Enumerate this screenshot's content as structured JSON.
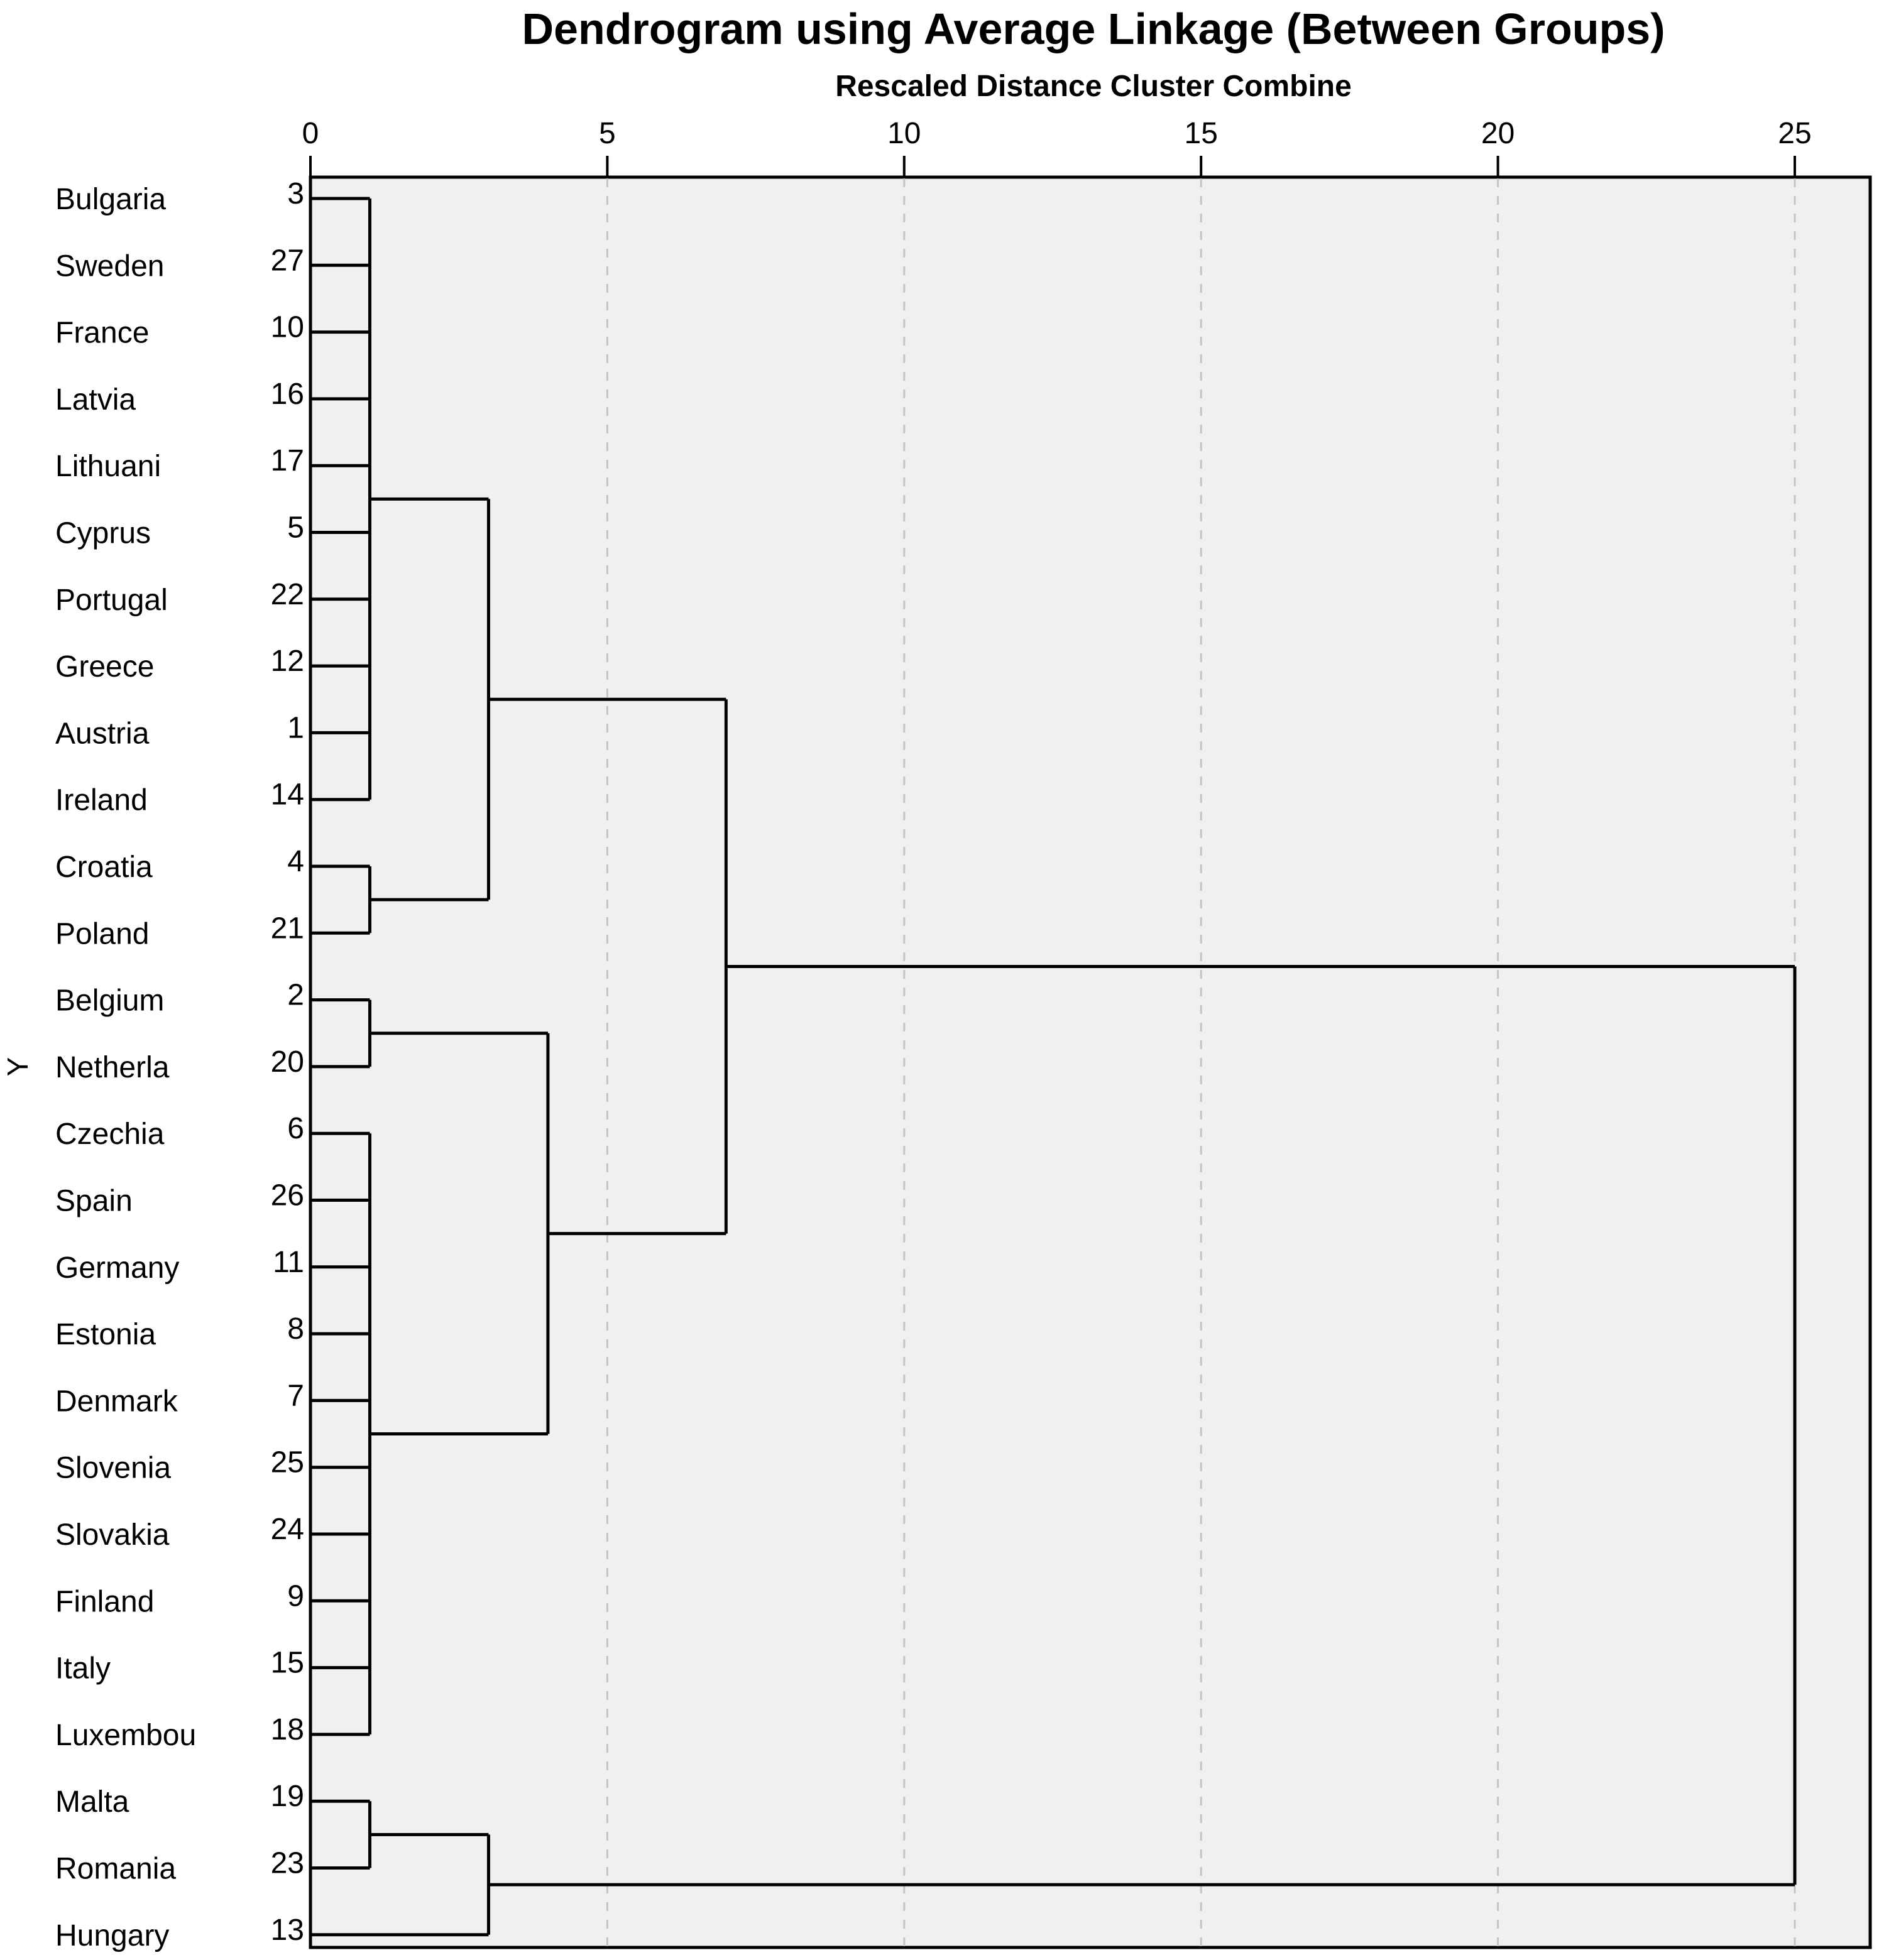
{
  "chart_data": {
    "type": "dendrogram",
    "title": "Dendrogram using Average Linkage (Between Groups)",
    "xlabel": "Rescaled Distance Cluster Combine",
    "ylabel": "Y",
    "xlim": [
      0,
      26.3
    ],
    "xticks": [
      0,
      5,
      10,
      15,
      20,
      25
    ],
    "grid": "vertical dashed lines at 5, 10, 15, 20, 25",
    "leaves": [
      {
        "label": "Bulgaria",
        "case": "3"
      },
      {
        "label": "Sweden",
        "case": "27"
      },
      {
        "label": "France",
        "case": "10"
      },
      {
        "label": "Latvia",
        "case": "16"
      },
      {
        "label": "Lithuani",
        "case": "17"
      },
      {
        "label": "Cyprus",
        "case": "5"
      },
      {
        "label": "Portugal",
        "case": "22"
      },
      {
        "label": "Greece",
        "case": "12"
      },
      {
        "label": "Austria",
        "case": "1"
      },
      {
        "label": "Ireland",
        "case": "14"
      },
      {
        "label": "Croatia",
        "case": "4"
      },
      {
        "label": "Poland",
        "case": "21"
      },
      {
        "label": "Belgium",
        "case": "2"
      },
      {
        "label": "Netherla",
        "case": "20"
      },
      {
        "label": "Czechia",
        "case": "6"
      },
      {
        "label": "Spain",
        "case": "26"
      },
      {
        "label": "Germany",
        "case": "11"
      },
      {
        "label": "Estonia",
        "case": "8"
      },
      {
        "label": "Denmark",
        "case": "7"
      },
      {
        "label": "Slovenia",
        "case": "25"
      },
      {
        "label": "Slovakia",
        "case": "24"
      },
      {
        "label": "Finland",
        "case": "9"
      },
      {
        "label": "Italy",
        "case": "15"
      },
      {
        "label": "Luxembou",
        "case": "18"
      },
      {
        "label": "Malta",
        "case": "19"
      },
      {
        "label": "Romania",
        "case": "23"
      },
      {
        "label": "Hungary",
        "case": "13"
      }
    ],
    "merges": [
      {
        "height": 1,
        "children": [
          [
            0
          ],
          [
            1
          ],
          [
            2
          ],
          [
            3
          ],
          [
            4
          ],
          [
            5
          ],
          [
            6
          ],
          [
            7
          ],
          [
            8
          ],
          [
            9
          ]
        ],
        "ids": [
          "Bulgaria",
          "Sweden",
          "France",
          "Latvia",
          "Lithuani",
          "Cyprus",
          "Portugal",
          "Greece",
          "Austria",
          "Ireland"
        ]
      },
      {
        "height": 1,
        "children": [
          [
            10
          ],
          [
            11
          ]
        ],
        "ids": [
          "Croatia",
          "Poland"
        ]
      },
      {
        "height": 1,
        "children": [
          [
            12
          ],
          [
            13
          ]
        ],
        "ids": [
          "Belgium",
          "Netherla"
        ]
      },
      {
        "height": 1,
        "children": [
          [
            14
          ],
          [
            15
          ],
          [
            16
          ],
          [
            17
          ],
          [
            18
          ],
          [
            19
          ],
          [
            20
          ],
          [
            21
          ],
          [
            22
          ],
          [
            23
          ]
        ],
        "ids": [
          "Czechia",
          "Spain",
          "Germany",
          "Estonia",
          "Denmark",
          "Slovenia",
          "Slovakia",
          "Finland",
          "Italy",
          "Luxembou"
        ]
      },
      {
        "height": 1,
        "children": [
          [
            24
          ],
          [
            25
          ]
        ],
        "ids": [
          "Malta",
          "Romania"
        ]
      },
      {
        "height": 3,
        "children": [
          "A1",
          "A2"
        ],
        "ids": [
          "Cluster Bulgaria–Ireland",
          "Cluster Croatia–Poland"
        ]
      },
      {
        "height": 3,
        "children": [
          "A5",
          [
            26
          ]
        ],
        "ids": [
          "Cluster Malta–Romania",
          "Hungary"
        ]
      },
      {
        "height": 4,
        "children": [
          "A3",
          "A4"
        ],
        "ids": [
          "Cluster Belgium–Netherla",
          "Cluster Czechia–Luxembou"
        ]
      },
      {
        "height": 7,
        "children": [
          "B1",
          "B3"
        ],
        "ids": [
          "Cluster Bulgaria–Poland",
          "Cluster Belgium–Luxembou"
        ]
      },
      {
        "height": 25,
        "children": [
          "C1",
          "B2"
        ],
        "ids": [
          "Cluster Bulgaria–Luxembou",
          "Cluster Malta–Hungary"
        ]
      }
    ]
  }
}
